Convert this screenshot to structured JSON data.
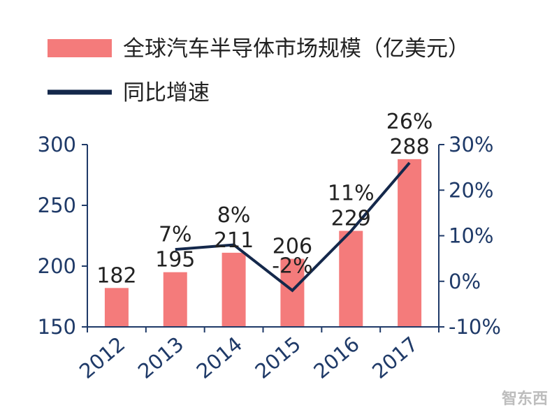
{
  "chart_data": {
    "type": "bar+line",
    "categories": [
      "2012",
      "2013",
      "2014",
      "2015",
      "2016",
      "2017"
    ],
    "series": [
      {
        "name": "全球汽车半导体市场规模（亿美元）",
        "kind": "bar",
        "axis": "left",
        "values": [
          182,
          195,
          211,
          206,
          229,
          288
        ],
        "labels": [
          "182",
          "195",
          "211",
          "206",
          "229",
          "288"
        ]
      },
      {
        "name": "同比增速",
        "kind": "line",
        "axis": "right",
        "values": [
          null,
          7,
          8,
          -2,
          11,
          26
        ],
        "labels": [
          "",
          "7%",
          "8%",
          "-2%",
          "11%",
          "26%"
        ]
      }
    ],
    "y_left": {
      "min": 150,
      "max": 300,
      "ticks": [
        "150",
        "200",
        "250",
        "300"
      ]
    },
    "y_right": {
      "min": -10,
      "max": 30,
      "ticks": [
        "-10%",
        "0%",
        "10%",
        "20%",
        "30%"
      ]
    },
    "colors": {
      "bar": "#f47b7b",
      "line": "#14284b",
      "axis": "#1f3a68"
    },
    "watermark": "智东西"
  }
}
